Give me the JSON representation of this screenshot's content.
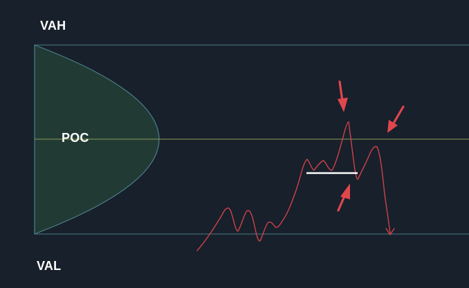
{
  "labels": {
    "vah": "VAH",
    "poc": "POC",
    "val": "VAL"
  },
  "colors": {
    "background": "#17202b",
    "value_area_lines": "#4a7b86",
    "poc_line": "#8f9a5a",
    "profile_fill": "#213b34",
    "profile_stroke": "#4d7f8d",
    "price_line": "#d0424a",
    "arrows": "#e0464e",
    "support_line": "#ffffff"
  },
  "icons": {
    "arrows": [
      "arrow-down-icon",
      "arrow-down-left-icon",
      "arrow-up-left-icon",
      "arrow-down-icon"
    ]
  }
}
